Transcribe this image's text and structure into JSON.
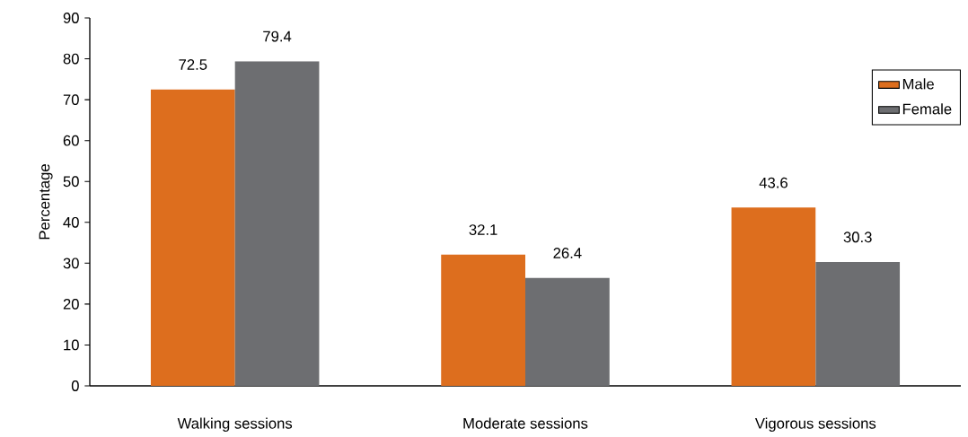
{
  "chart_data": {
    "type": "bar",
    "ylabel": "Percentage",
    "categories": [
      "Walking sessions",
      "Moderate sessions",
      "Vigorous sessions"
    ],
    "series": [
      {
        "name": "Male",
        "color": "#dd6e1e",
        "values": [
          72.5,
          32.1,
          43.6
        ]
      },
      {
        "name": "Female",
        "color": "#6d6e71",
        "values": [
          79.4,
          26.4,
          30.3
        ]
      }
    ],
    "ylim": [
      0,
      90
    ],
    "yticks": [
      0,
      10,
      20,
      30,
      40,
      50,
      60,
      70,
      80,
      90
    ],
    "data_labels": true,
    "legend": "top right",
    "grid": false
  }
}
